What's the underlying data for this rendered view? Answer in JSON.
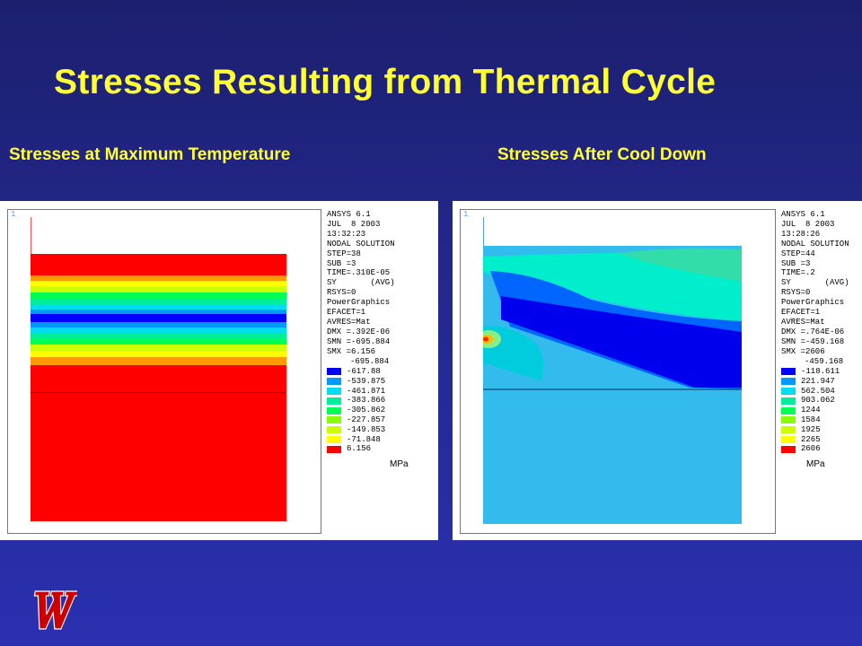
{
  "slide": {
    "title": "Stresses Resulting from Thermal Cycle",
    "left_heading": "Stresses at Maximum Temperature",
    "right_heading": "Stresses After Cool Down"
  },
  "left_panel": {
    "corner_mark": "1",
    "info": [
      "ANSYS 6.1",
      "JUL  8 2003",
      "13:32:23",
      "NODAL SOLUTION",
      "STEP=38",
      "SUB =3",
      "TIME=.310E-05",
      "SY       (AVG)",
      "RSYS=0",
      "PowerGraphics",
      "EFACET=1",
      "AVRES=Mat",
      "DMX =.392E-06",
      "SMN =-695.884",
      "SMX =6.156"
    ],
    "legend_values": [
      "-695.884",
      "-617.88",
      "-539.875",
      "-461.871",
      "-383.866",
      "-305.862",
      "-227.857",
      "-149.853",
      "-71.848",
      "6.156"
    ],
    "unit": "MPa"
  },
  "right_panel": {
    "corner_mark": "1",
    "info": [
      "ANSYS 6.1",
      "JUL  8 2003",
      "13:28:26",
      "NODAL SOLUTION",
      "STEP=44",
      "SUB =3",
      "TIME=.2",
      "SY       (AVG)",
      "RSYS=0",
      "PowerGraphics",
      "EFACET=1",
      "AVRES=Mat",
      "DMX =.764E-06",
      "SMN =-459.168",
      "SMX =2606"
    ],
    "legend_values": [
      "-459.168",
      "-118.611",
      "221.947",
      "562.504",
      "903.062",
      "1244",
      "1584",
      "1925",
      "2265",
      "2606"
    ],
    "unit": "MPa"
  },
  "legend_colors": [
    "#0000ff",
    "#0099ff",
    "#00ddee",
    "#00ee99",
    "#00ff55",
    "#88ff00",
    "#ccff00",
    "#ffff00",
    "#ff9900",
    "#ff0000"
  ],
  "colors": {
    "title": "#ffff33",
    "logo": "#cc0000"
  },
  "logo_icon": "wisconsin-w-logo"
}
